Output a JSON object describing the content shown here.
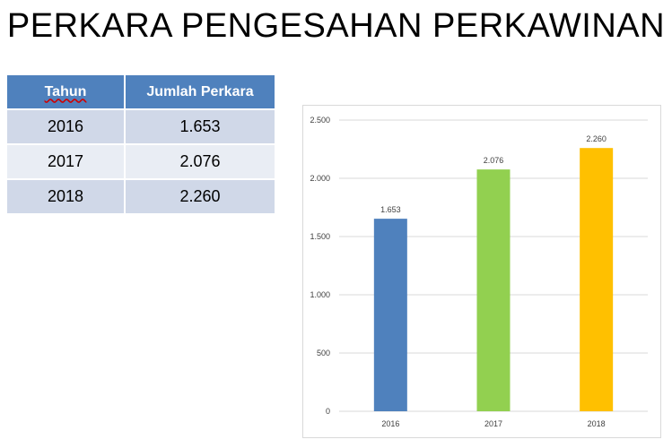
{
  "title": "PERKARA PENGESAHAN PERKAWINAN",
  "table": {
    "headers": [
      "Tahun",
      "Jumlah Perkara"
    ],
    "rows": [
      [
        "2016",
        "1.653"
      ],
      [
        "2017",
        "2.076"
      ],
      [
        "2018",
        "2.260"
      ]
    ],
    "header_color": "#4f81bd",
    "row_colors": [
      "#d0d8e8",
      "#e9edf4"
    ]
  },
  "chart_data": {
    "type": "bar",
    "categories": [
      "2016",
      "2017",
      "2018"
    ],
    "values": [
      1653,
      2076,
      2260
    ],
    "value_labels": [
      "1.653",
      "2.076",
      "2.260"
    ],
    "bar_colors": [
      "#4f81bd",
      "#92d050",
      "#ffc000"
    ],
    "y_ticks": [
      0,
      500,
      1000,
      1500,
      2000,
      2500
    ],
    "y_tick_labels": [
      "0",
      "500",
      "1.000",
      "1.500",
      "2.000",
      "2.500"
    ],
    "ylim": [
      0,
      2500
    ],
    "title": "",
    "xlabel": "",
    "ylabel": "",
    "grid": true,
    "legend": false
  }
}
